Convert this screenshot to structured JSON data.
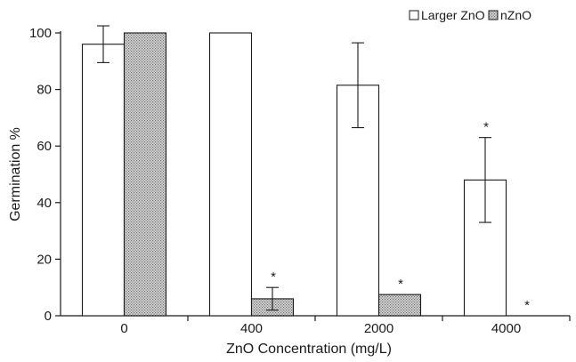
{
  "chart_data": {
    "type": "bar",
    "categories": [
      "0",
      "400",
      "2000",
      "4000"
    ],
    "series": [
      {
        "name": "Larger ZnO",
        "values": [
          96,
          100,
          81.5,
          48
        ],
        "errors": [
          6.5,
          0,
          15,
          15
        ],
        "significant": [
          false,
          false,
          false,
          true
        ],
        "fill": "#ffffff"
      },
      {
        "name": "nZnO",
        "values": [
          100,
          6,
          7.5,
          0
        ],
        "errors": [
          0,
          4,
          0,
          0
        ],
        "significant": [
          false,
          true,
          true,
          true
        ],
        "fill": "pattern"
      }
    ],
    "xlabel": "ZnO Concentration (mg/L)",
    "ylabel": "Germination %",
    "ylim": [
      0,
      100
    ],
    "yticks": [
      0,
      20,
      40,
      60,
      80,
      100
    ],
    "significance_marker": "*",
    "legend_position": "top-right",
    "grid": false,
    "colors": {
      "axis": "#1a1a1a",
      "bar_stroke": "#1a1a1a",
      "pattern_dot": "#6b6b6b",
      "pattern_bg": "#d9d9d9"
    }
  }
}
